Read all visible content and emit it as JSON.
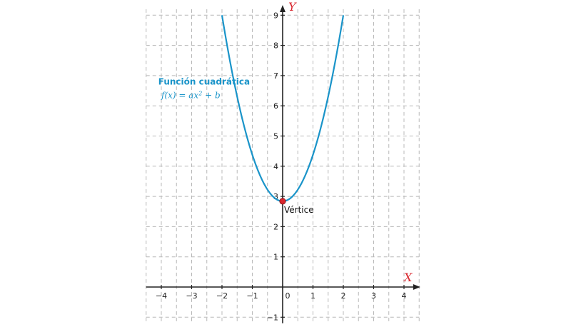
{
  "chart_data": {
    "type": "line",
    "title": "",
    "xlabel": "X",
    "ylabel": "Y",
    "xlim": [
      -4,
      4
    ],
    "ylim": [
      -1,
      9
    ],
    "x_ticks": [
      -4,
      -3,
      -2,
      -1,
      0,
      1,
      2,
      3,
      4
    ],
    "x_tick_labels": [
      "−4",
      "−3",
      "−2",
      "−1",
      "0",
      "1",
      "2",
      "3",
      "4"
    ],
    "y_ticks": [
      -1,
      0,
      1,
      2,
      3,
      4,
      5,
      6,
      7,
      8,
      9
    ],
    "y_tick_labels": [
      "−1",
      "",
      "1",
      "2",
      "3",
      "4",
      "5",
      "6",
      "7",
      "8",
      "9"
    ],
    "grid": true,
    "series": [
      {
        "name": "Función cuadrática",
        "formula": "f(x) = ax² + b",
        "x": [
          -2.0,
          -1.5,
          -1.0,
          -0.5,
          0.0,
          0.5,
          1.0,
          1.5,
          2.0
        ],
        "values": [
          9.0,
          6.33,
          4.39,
          3.23,
          2.84,
          3.23,
          4.39,
          6.33,
          9.0
        ]
      }
    ],
    "points": [
      {
        "name": "Vértice",
        "x": 0,
        "y": 2.84
      }
    ],
    "annotation": {
      "title": "Función cuadrática",
      "formula_prefix": "f(x) = ax",
      "formula_exp": "2",
      "formula_suffix": " + b"
    },
    "colors": {
      "curve": "#1a94c9",
      "axis_label": "#d9272e",
      "vertex": "#d9272e",
      "grid": "#b8b8b8",
      "axis": "#222222"
    }
  }
}
